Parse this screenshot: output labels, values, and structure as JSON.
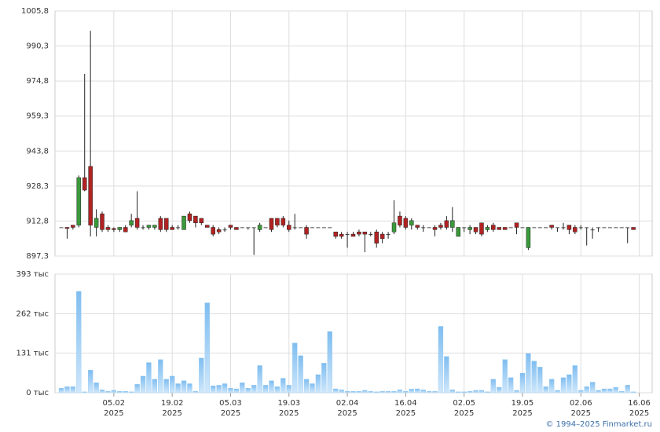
{
  "chart_data": {
    "type": "candlestick",
    "credit": "© 1994–2025 Finmarket.ru",
    "categories": [
      null,
      null,
      null,
      null,
      null,
      null,
      null,
      null,
      null,
      "05.02\n2025",
      null,
      null,
      null,
      null,
      null,
      null,
      null,
      null,
      null,
      "19.02\n2025",
      null,
      null,
      null,
      null,
      null,
      null,
      null,
      null,
      null,
      "05.03\n2025",
      null,
      null,
      null,
      null,
      null,
      null,
      null,
      null,
      null,
      "19.03\n2025",
      null,
      null,
      null,
      null,
      null,
      null,
      null,
      null,
      null,
      "02.04\n2025",
      null,
      null,
      null,
      null,
      null,
      null,
      null,
      null,
      null,
      "16.04\n2025",
      null,
      null,
      null,
      null,
      null,
      null,
      null,
      null,
      null,
      "02.05\n2025",
      null,
      null,
      null,
      null,
      null,
      null,
      null,
      null,
      null,
      "19.05\n2025",
      null,
      null,
      null,
      null,
      null,
      null,
      null,
      null,
      null,
      "02.06\n2025",
      null,
      null,
      null,
      null,
      null,
      null,
      null,
      null,
      null,
      "16.06\n2025"
    ],
    "open": [
      910,
      910,
      911,
      911,
      932,
      937,
      910,
      916,
      910,
      909.5,
      909,
      910,
      911,
      914,
      910,
      910,
      910,
      914,
      914,
      910,
      910,
      909,
      916,
      915,
      914,
      911,
      910,
      909,
      909,
      911,
      910,
      910,
      910,
      910,
      909,
      910,
      914,
      914,
      914,
      911,
      910,
      910,
      910,
      910,
      910,
      910,
      910,
      908,
      907,
      907,
      907,
      908,
      908,
      907,
      908,
      907,
      907,
      908,
      915,
      914,
      911,
      911,
      910,
      910,
      910,
      911,
      913,
      910,
      906,
      910,
      909,
      910,
      912,
      909,
      911,
      910,
      910,
      910,
      912,
      910,
      901,
      910,
      910,
      910,
      911,
      910,
      910,
      911,
      910,
      910,
      910,
      909,
      910,
      910,
      910,
      910,
      910,
      910,
      910,
      null
    ],
    "high": [
      910,
      910,
      911,
      933,
      978,
      997,
      918,
      917,
      911,
      910,
      910,
      911,
      916,
      926,
      911,
      911,
      911,
      915,
      914,
      911,
      911,
      915,
      917,
      915,
      914,
      911,
      911,
      910,
      910,
      911,
      910,
      910,
      910,
      910,
      912,
      910,
      914,
      914,
      915,
      913,
      916,
      910,
      911,
      910,
      910,
      910,
      910,
      908,
      908,
      908,
      908,
      909,
      908,
      908,
      909,
      908,
      908,
      922,
      917,
      915,
      914,
      911,
      911,
      910,
      911,
      912,
      915,
      919,
      910,
      910,
      911,
      910,
      912,
      911,
      912,
      910,
      910,
      910,
      912,
      910,
      910,
      910,
      910,
      910,
      911,
      910,
      912,
      911,
      911,
      911,
      910,
      910,
      910,
      910,
      910,
      910,
      910,
      910,
      910,
      null
    ],
    "low": [
      910,
      905,
      909,
      910,
      926,
      906,
      906,
      908,
      908,
      908,
      908,
      908,
      910,
      909,
      909,
      909,
      909,
      908,
      908,
      909,
      909,
      909,
      912,
      910,
      911,
      910,
      906,
      907,
      908,
      909,
      909,
      910,
      909,
      897.8,
      908,
      910,
      908,
      910,
      910,
      908,
      909,
      910,
      905,
      910,
      910,
      910,
      910,
      905,
      905,
      901,
      906,
      906,
      899,
      906,
      901,
      903,
      905,
      907,
      910,
      909,
      909,
      909,
      908,
      910,
      906,
      909,
      909,
      908,
      906,
      908,
      907,
      907,
      906,
      908,
      908,
      909,
      909,
      910,
      907,
      910,
      900,
      910,
      910,
      910,
      909,
      908,
      909,
      907,
      907,
      909,
      902,
      905,
      908,
      910,
      910,
      910,
      910,
      903,
      909,
      null
    ],
    "close": [
      910,
      909.5,
      910,
      932,
      926.5,
      911,
      914,
      909,
      909,
      909,
      910,
      908,
      913,
      910,
      910,
      911,
      911,
      909,
      909,
      909,
      910,
      915,
      913,
      912,
      912,
      910,
      907,
      908,
      909,
      910,
      909,
      910,
      910,
      910,
      911,
      910,
      909,
      911,
      911,
      909,
      910,
      910,
      907,
      910,
      910,
      910,
      910,
      906,
      906,
      907,
      906,
      907,
      907,
      907,
      903,
      905,
      907,
      912,
      911,
      910,
      913,
      910,
      910,
      910,
      909,
      910,
      910,
      913,
      910,
      910,
      910,
      908,
      907,
      910,
      909,
      909,
      909,
      910,
      910,
      910,
      910,
      910,
      910,
      910,
      910,
      910,
      910,
      909,
      908,
      910,
      910,
      909,
      910,
      910,
      910,
      910,
      910,
      910,
      909,
      null
    ],
    "up_color": "#3a9a3a",
    "down_color": "#b22222",
    "ylim": [
      897.3,
      1005.8
    ],
    "yticks": [
      {
        "value": 897.3,
        "label": "897,3"
      },
      {
        "value": 912.8,
        "label": "912,8"
      },
      {
        "value": 928.3,
        "label": "928,3"
      },
      {
        "value": 943.8,
        "label": "943,8"
      },
      {
        "value": 959.3,
        "label": "959,3"
      },
      {
        "value": 974.8,
        "label": "974,8"
      },
      {
        "value": 990.3,
        "label": "990,3"
      },
      {
        "value": 1005.8,
        "label": "1005,8"
      }
    ],
    "volume": {
      "color": "#8ec8f2",
      "values": [
        15,
        20,
        20,
        336,
        3,
        75,
        33,
        10,
        5,
        8,
        5,
        5,
        3,
        28,
        55,
        100,
        45,
        110,
        45,
        55,
        30,
        40,
        30,
        5,
        115,
        298,
        23,
        25,
        30,
        15,
        13,
        33,
        15,
        25,
        90,
        25,
        40,
        20,
        48,
        25,
        165,
        123,
        45,
        30,
        60,
        98,
        203,
        13,
        10,
        5,
        5,
        5,
        8,
        5,
        3,
        5,
        5,
        5,
        10,
        5,
        12,
        13,
        10,
        5,
        5,
        220,
        120,
        10,
        3,
        3,
        5,
        8,
        8,
        3,
        45,
        18,
        110,
        50,
        8,
        65,
        130,
        105,
        85,
        20,
        45,
        8,
        50,
        60,
        90,
        8,
        20,
        35,
        8,
        13,
        13,
        18,
        5,
        25,
        3,
        null
      ],
      "ylim": [
        0,
        393
      ],
      "yticks": [
        {
          "value": 0,
          "label": "0 тыс"
        },
        {
          "value": 131,
          "label": "131 тыс"
        },
        {
          "value": 262,
          "label": "262 тыс"
        },
        {
          "value": 393,
          "label": "393 тыс"
        }
      ]
    },
    "grid": true
  }
}
